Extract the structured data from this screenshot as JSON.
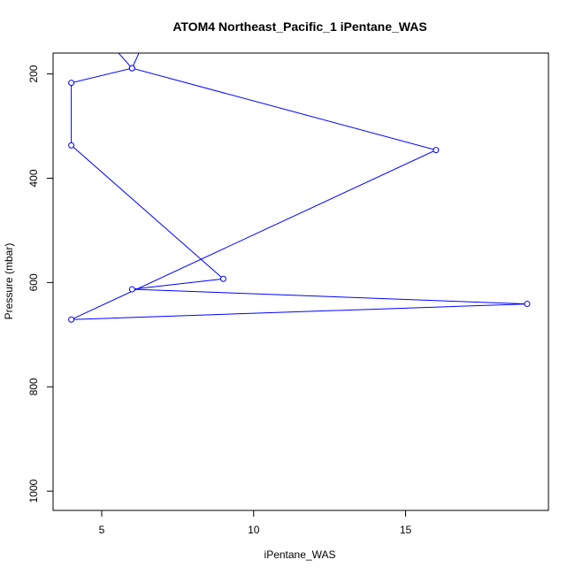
{
  "chart_data": {
    "type": "line",
    "title": "ATOM4 Northeast_Pacific_1 iPentane_WAS",
    "xlabel": "iPentane_WAS",
    "ylabel": "Pressure (mbar)",
    "xlim": [
      3.4,
      19.7
    ],
    "ylim": [
      1037,
      160
    ],
    "y_reversed": true,
    "xticks": [
      5,
      10,
      15
    ],
    "yticks": [
      200,
      400,
      600,
      800,
      1000
    ],
    "series": [
      {
        "color": "#0000ff",
        "marker": "open-circle",
        "x": [
          7.0,
          6.0,
          4.0,
          4.0,
          9.0,
          6.0,
          19.0,
          4.0,
          16.0,
          6.0,
          5.4,
          4.9
        ],
        "y": [
          60,
          189,
          217,
          337,
          593,
          613,
          641,
          671,
          346,
          189,
          150,
          130
        ],
        "markers_visible_index": [
          1,
          2,
          3,
          4,
          5,
          6,
          7,
          8,
          9
        ]
      }
    ]
  }
}
